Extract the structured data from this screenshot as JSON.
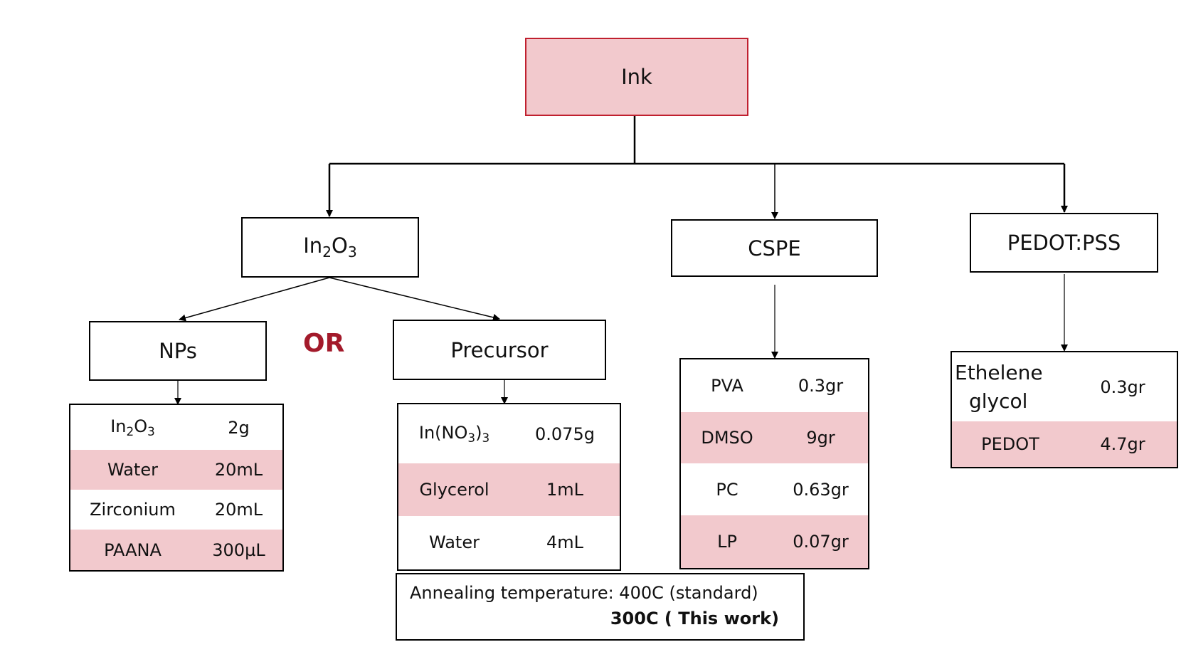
{
  "root": {
    "label": "Ink"
  },
  "branches": {
    "in2o3": {
      "base": "In",
      "sub1": "2",
      "mid": "O",
      "sub2": "3"
    },
    "cspe": {
      "label": "CSPE"
    },
    "pedot_pss": {
      "label": "PEDOT:PSS"
    }
  },
  "in2o3_options": {
    "nps": {
      "label": "NPs"
    },
    "or": "OR",
    "precursor": {
      "label": "Precursor"
    }
  },
  "nps_table": [
    {
      "name_base": "In",
      "name_sub1": "2",
      "name_mid": "O",
      "name_sub2": "3",
      "value": "2g"
    },
    {
      "name": "Water",
      "value": "20mL"
    },
    {
      "name": "Zirconium",
      "value": "20mL"
    },
    {
      "name": "PAANA",
      "value": "300µL"
    }
  ],
  "precursor_table": [
    {
      "name_base": "In(NO",
      "name_sub1": "3",
      "name_mid": ")",
      "name_sub2": "3",
      "value": "0.075g"
    },
    {
      "name": "Glycerol",
      "value": "1mL"
    },
    {
      "name": "Water",
      "value": "4mL"
    }
  ],
  "cspe_table": [
    {
      "name": "PVA",
      "value": "0.3gr"
    },
    {
      "name": "DMSO",
      "value": "9gr"
    },
    {
      "name": "PC",
      "value": "0.63gr"
    },
    {
      "name": "LP",
      "value": "0.07gr"
    }
  ],
  "pedot_table": [
    {
      "name_line1": "Ethelene",
      "name_line2": "glycol",
      "value": "0.3gr"
    },
    {
      "name": "PEDOT",
      "value": "4.7gr"
    }
  ],
  "annealing": {
    "line1": "Annealing temperature: 400C (standard)",
    "line2": "300C ( This work)"
  },
  "colors": {
    "accent_fill": "#f2c9cd",
    "root_border": "#c0202f",
    "or_text": "#a31a2b"
  }
}
